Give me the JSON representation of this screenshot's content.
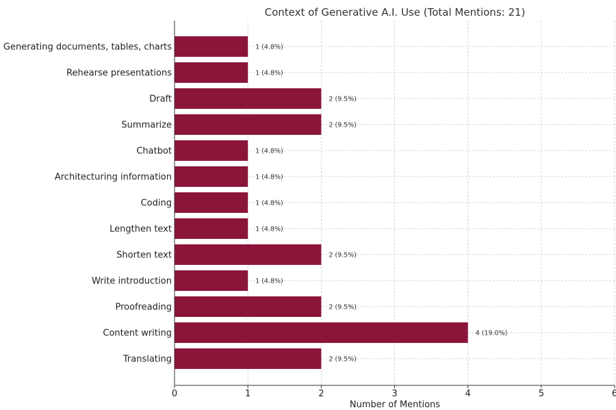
{
  "chart_data": {
    "type": "bar",
    "orientation": "horizontal",
    "title": "Context of Generative A.I. Use (Total Mentions: 21)",
    "xlabel": "Number of Mentions",
    "ylabel": "",
    "xlim": [
      0,
      6
    ],
    "xticks": [
      "0",
      "1",
      "2",
      "3",
      "4",
      "5",
      "6"
    ],
    "grid": true,
    "bar_color": "#8b1538",
    "categories": [
      "Generating documents, tables, charts",
      "Rehearse presentations",
      "Draft",
      "Summarize",
      "Chatbot",
      "Architecturing information",
      "Coding",
      "Lengthen text",
      "Shorten text",
      "Write introduction",
      "Proofreading",
      "Content writing",
      "Translating"
    ],
    "values": [
      1,
      1,
      2,
      2,
      1,
      1,
      1,
      1,
      2,
      1,
      2,
      4,
      2
    ],
    "data_labels": [
      "1 (4.8%)",
      "1 (4.8%)",
      "2 (9.5%)",
      "2 (9.5%)",
      "1 (4.8%)",
      "1 (4.8%)",
      "1 (4.8%)",
      "1 (4.8%)",
      "2 (9.5%)",
      "1 (4.8%)",
      "2 (9.5%)",
      "4 (19.0%)",
      "2 (9.5%)"
    ]
  }
}
